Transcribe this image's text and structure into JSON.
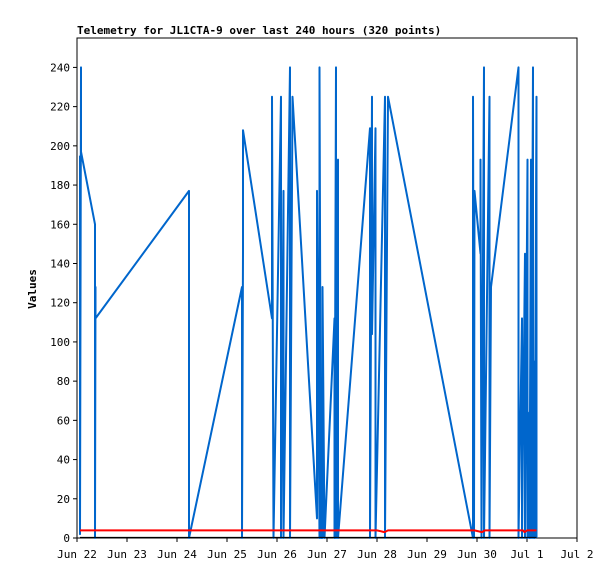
{
  "chart_data": {
    "type": "line",
    "title": "Telemetry for JL1CTA-9 over last 240 hours (320 points)",
    "xlabel": "",
    "ylabel": "Values",
    "x_tick_labels": [
      "Jun 22",
      "Jun 23",
      "Jun 24",
      "Jun 25",
      "Jun 26",
      "Jun 27",
      "Jun 28",
      "Jun 29",
      "Jun 30",
      "Jul 1",
      "Jul 2"
    ],
    "y_ticks": [
      0,
      20,
      40,
      60,
      80,
      100,
      120,
      140,
      160,
      180,
      200,
      220,
      240
    ],
    "xlim": [
      0,
      10
    ],
    "ylim": [
      0,
      255
    ],
    "grid": false,
    "legend": "none",
    "series": [
      {
        "color": "#0066cc",
        "points": [
          [
            0.06,
            195
          ],
          [
            0.06,
            2
          ],
          [
            0.08,
            240
          ],
          [
            0.08,
            197
          ],
          [
            0.36,
            160
          ],
          [
            0.36,
            0
          ],
          [
            0.37,
            128
          ],
          [
            0.37,
            112
          ],
          [
            2.24,
            177
          ],
          [
            2.24,
            0
          ],
          [
            3.3,
            128
          ],
          [
            3.3,
            0
          ],
          [
            3.32,
            146
          ],
          [
            3.32,
            208
          ],
          [
            3.9,
            112
          ],
          [
            3.9,
            225
          ],
          [
            3.93,
            0
          ],
          [
            4.08,
            225
          ],
          [
            4.08,
            0
          ],
          [
            4.13,
            177
          ],
          [
            4.13,
            0
          ],
          [
            4.26,
            240
          ],
          [
            4.26,
            0
          ],
          [
            4.31,
            225
          ],
          [
            4.8,
            10
          ],
          [
            4.8,
            177
          ],
          [
            4.85,
            0
          ],
          [
            4.85,
            240
          ],
          [
            4.88,
            0
          ],
          [
            4.91,
            0
          ],
          [
            4.91,
            128
          ],
          [
            4.95,
            0
          ],
          [
            5.15,
            112
          ],
          [
            5.15,
            0
          ],
          [
            5.18,
            240
          ],
          [
            5.18,
            0
          ],
          [
            5.22,
            193
          ],
          [
            5.22,
            0
          ],
          [
            5.86,
            209
          ],
          [
            5.86,
            0
          ],
          [
            5.9,
            225
          ],
          [
            5.9,
            104
          ],
          [
            5.97,
            209
          ],
          [
            5.97,
            0
          ],
          [
            6.16,
            225
          ],
          [
            6.16,
            0
          ],
          [
            6.22,
            225
          ],
          [
            6.22,
            225
          ],
          [
            7.92,
            0
          ],
          [
            7.92,
            225
          ],
          [
            7.94,
            0
          ],
          [
            7.95,
            177
          ],
          [
            8.07,
            145
          ],
          [
            8.07,
            193
          ],
          [
            8.09,
            0
          ],
          [
            8.14,
            240
          ],
          [
            8.14,
            0
          ],
          [
            8.25,
            225
          ],
          [
            8.25,
            0
          ],
          [
            8.28,
            128
          ],
          [
            8.83,
            240
          ],
          [
            8.83,
            0
          ],
          [
            8.9,
            112
          ],
          [
            8.9,
            0
          ],
          [
            8.96,
            145
          ],
          [
            8.96,
            0
          ],
          [
            9.01,
            193
          ],
          [
            9.01,
            0
          ],
          [
            9.05,
            64
          ],
          [
            9.05,
            0
          ],
          [
            9.08,
            193
          ],
          [
            9.08,
            0
          ],
          [
            9.12,
            240
          ],
          [
            9.12,
            0
          ],
          [
            9.15,
            90
          ],
          [
            9.15,
            0
          ],
          [
            9.19,
            225
          ],
          [
            9.19,
            0
          ]
        ]
      },
      {
        "color": "#ff0000",
        "points": [
          [
            0.06,
            3.9
          ],
          [
            6.0,
            3.9
          ],
          [
            6.15,
            3.0
          ],
          [
            6.22,
            3.9
          ],
          [
            7.95,
            3.9
          ],
          [
            8.1,
            3.0
          ],
          [
            8.16,
            3.9
          ],
          [
            8.92,
            3.9
          ],
          [
            8.95,
            3.0
          ],
          [
            9.0,
            3.9
          ],
          [
            9.19,
            3.9
          ]
        ]
      },
      {
        "color": "#000000",
        "points": [
          [
            0.06,
            0.3
          ],
          [
            9.19,
            0.3
          ]
        ]
      }
    ]
  }
}
